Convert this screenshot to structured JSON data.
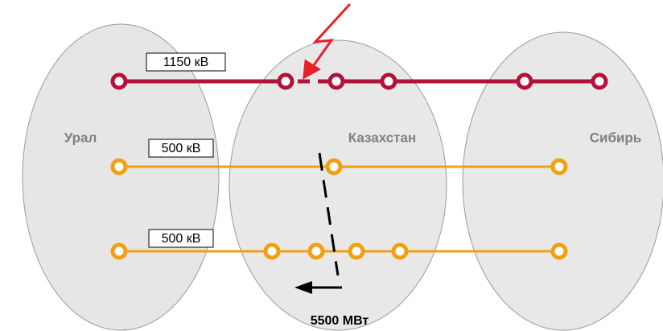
{
  "regions": [
    "Урал",
    "Казахстан",
    "Сибирь"
  ],
  "lines": [
    {
      "label": "1150 кВ"
    },
    {
      "label": "500 кВ"
    },
    {
      "label": "500 кВ"
    }
  ],
  "flow": "5500 МВт"
}
